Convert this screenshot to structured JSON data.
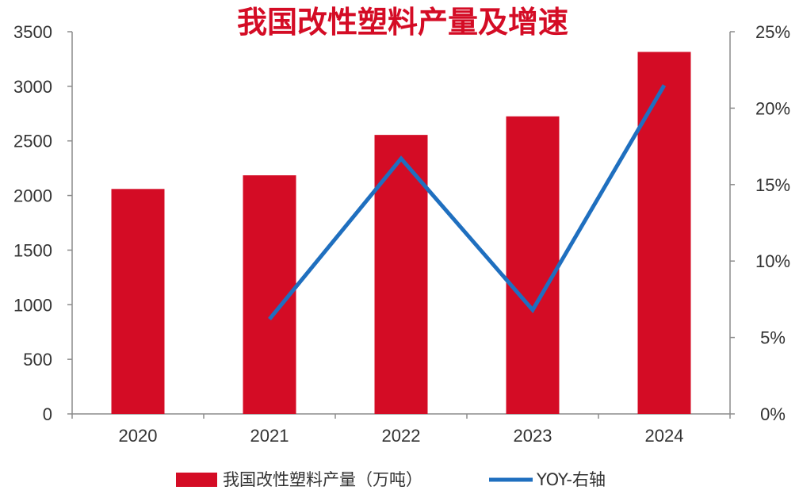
{
  "chart_data": {
    "type": "bar",
    "title": "我国改性塑料产量及增速",
    "categories": [
      "2020",
      "2021",
      "2022",
      "2023",
      "2024"
    ],
    "series": [
      {
        "name": "我国改性塑料产量（万吨）",
        "type": "bar",
        "axis": "left",
        "color": "#d40c25",
        "values": [
          2060,
          2185,
          2555,
          2725,
          3315
        ]
      },
      {
        "name": "YOY-右轴",
        "type": "line",
        "axis": "right",
        "color": "#1f6fbf",
        "values": [
          null,
          6.2,
          16.7,
          6.8,
          21.5
        ]
      }
    ],
    "y_left": {
      "range": [
        0,
        3500
      ],
      "ticks": [
        "0",
        "500",
        "1000",
        "1500",
        "2000",
        "2500",
        "3000",
        "3500"
      ]
    },
    "y_right": {
      "range": [
        0,
        25
      ],
      "ticks": [
        "0%",
        "5%",
        "10%",
        "15%",
        "20%",
        "25%"
      ]
    },
    "legend_position": "bottom",
    "grid": false
  }
}
